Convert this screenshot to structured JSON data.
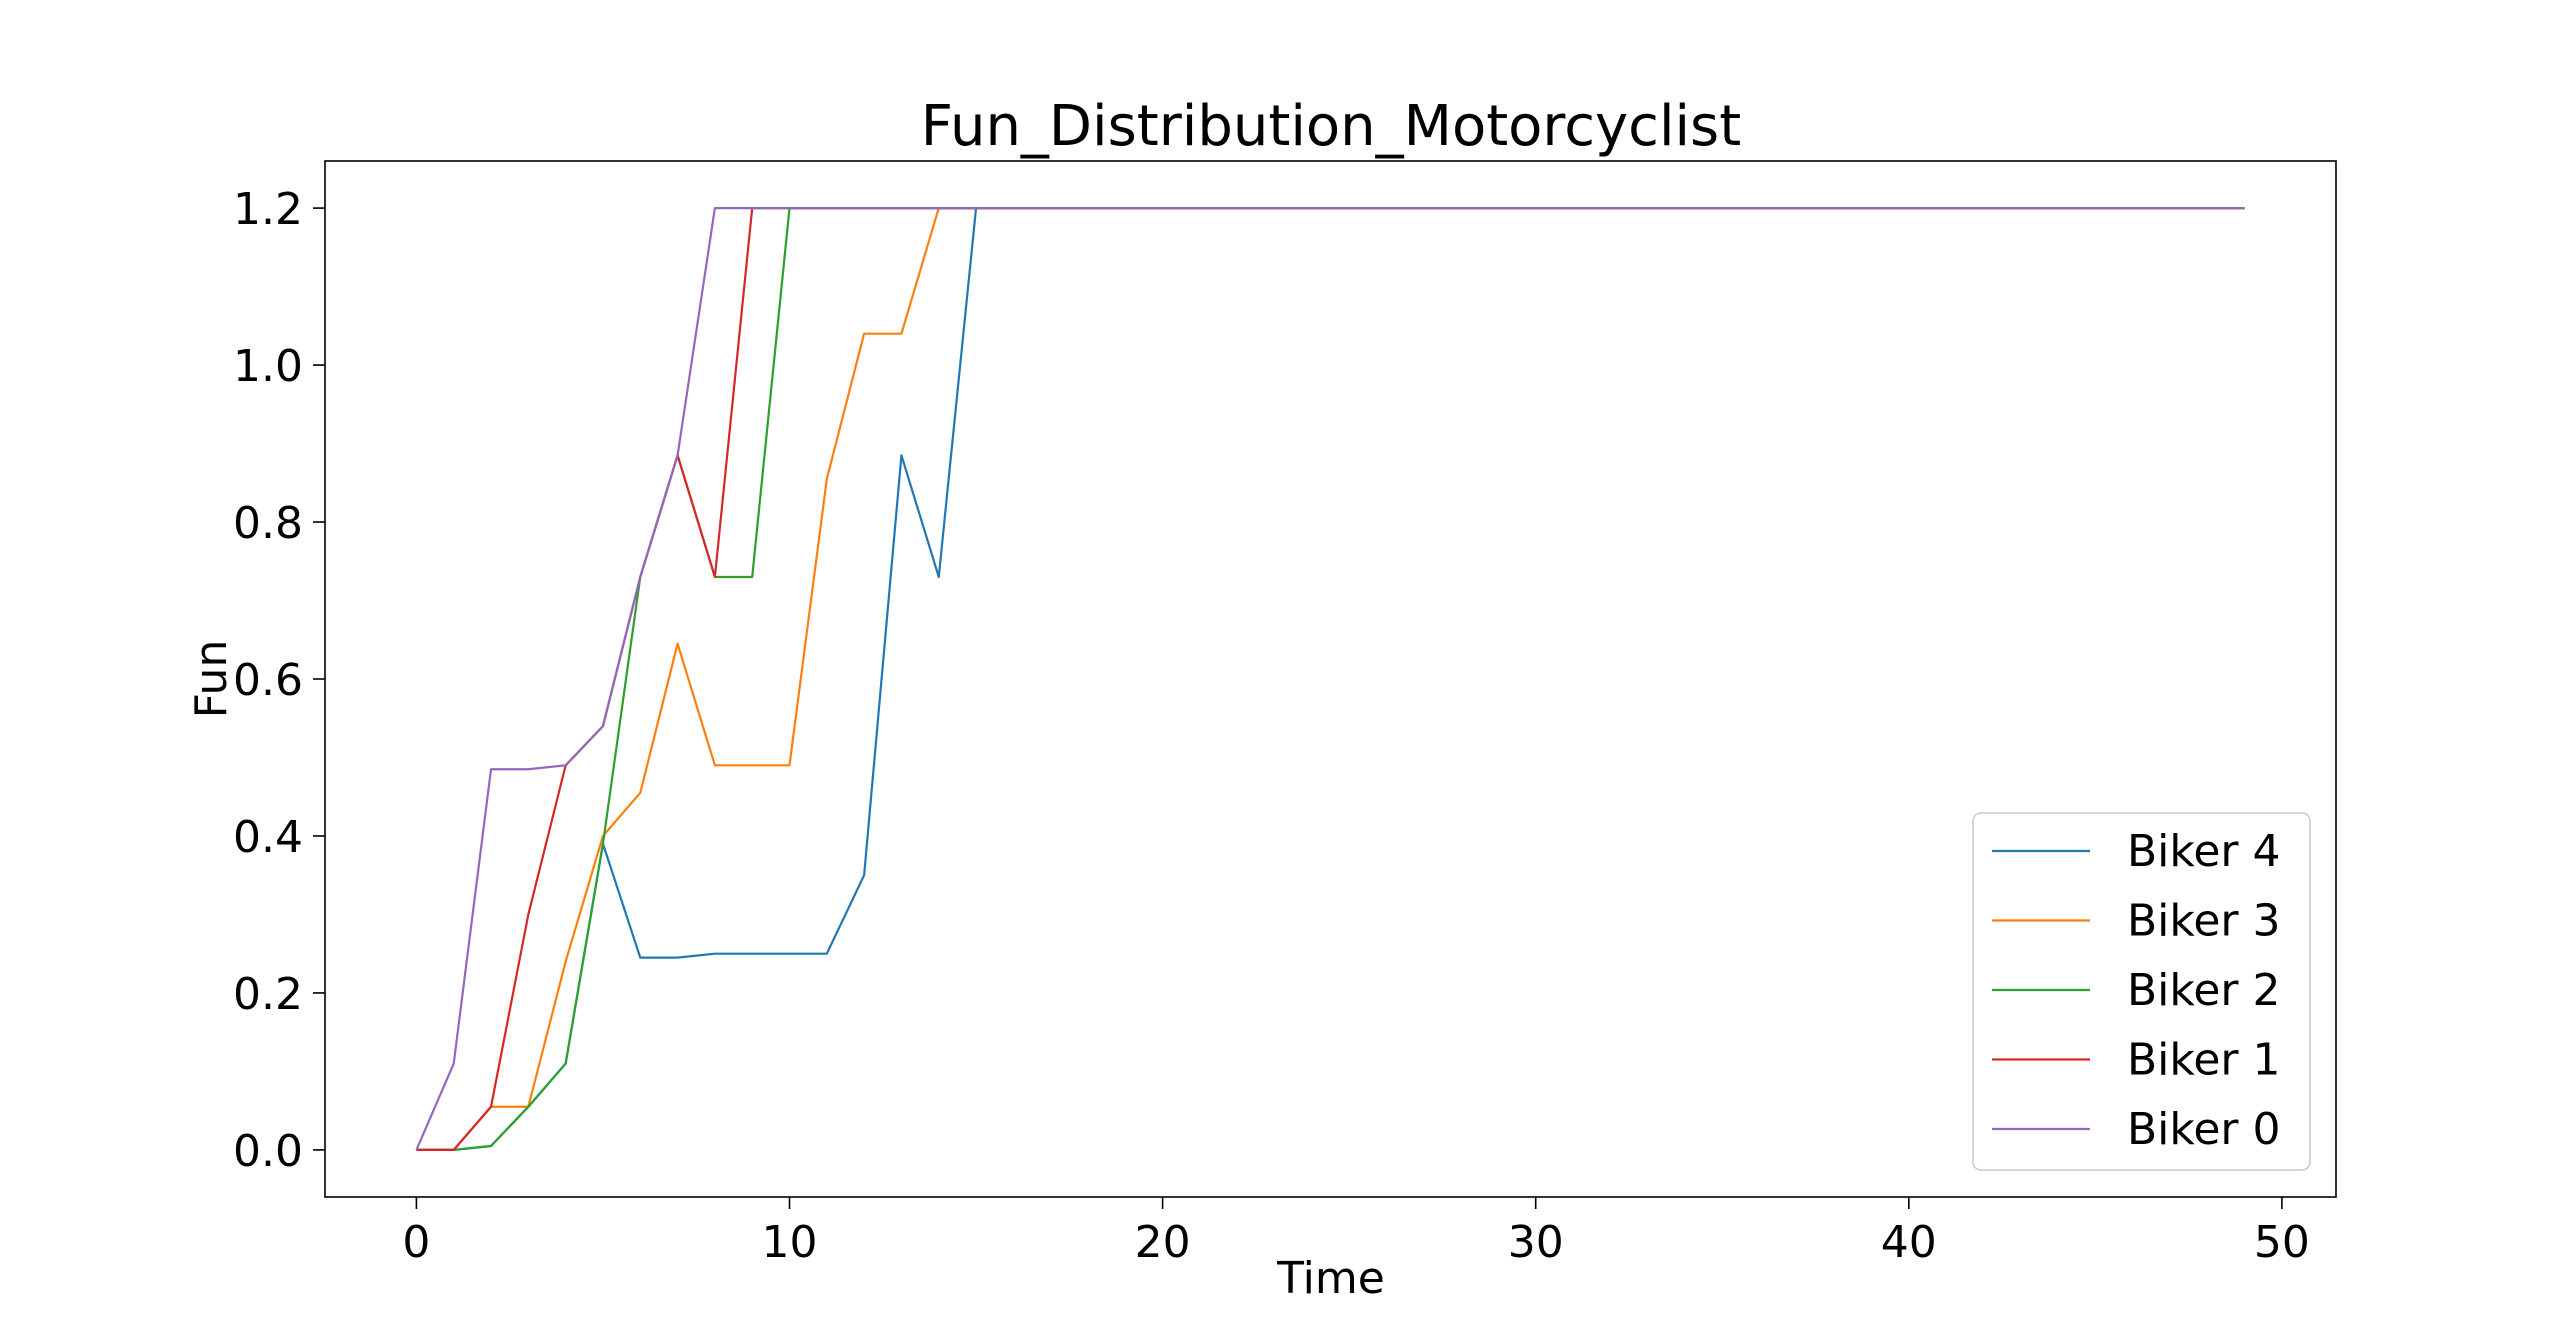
{
  "chart_data": {
    "type": "line",
    "title": "Fun_Distribution_Motorcyclist",
    "xlabel": "Time",
    "ylabel": "Fun",
    "xlim": [
      -2.45,
      51.45
    ],
    "ylim": [
      -0.06,
      1.26
    ],
    "xticks": [
      0,
      10,
      20,
      30,
      40,
      50
    ],
    "yticks": [
      0.0,
      0.2,
      0.4,
      0.6,
      0.8,
      1.0,
      1.2
    ],
    "ytick_labels": [
      "0.0",
      "0.2",
      "0.4",
      "0.6",
      "0.8",
      "1.0",
      "1.2"
    ],
    "grid": false,
    "legend_position": "lower-right",
    "series": [
      {
        "name": "Biker 4",
        "color": "#1f77b4",
        "x": [
          0,
          1,
          2,
          3,
          4,
          5,
          6,
          7,
          8,
          9,
          10,
          11,
          12,
          13,
          14,
          15,
          49
        ],
        "y": [
          0.0,
          0.0,
          0.005,
          0.055,
          0.11,
          0.39,
          0.245,
          0.245,
          0.25,
          0.25,
          0.25,
          0.25,
          0.35,
          0.885,
          0.73,
          1.2,
          1.2
        ]
      },
      {
        "name": "Biker 3",
        "color": "#ff7f0e",
        "x": [
          0,
          1,
          2,
          3,
          4,
          5,
          6,
          7,
          8,
          9,
          10,
          11,
          12,
          13,
          14,
          49
        ],
        "y": [
          0.0,
          0.0,
          0.055,
          0.055,
          0.24,
          0.4,
          0.455,
          0.645,
          0.49,
          0.49,
          0.49,
          0.855,
          1.04,
          1.04,
          1.2,
          1.2
        ]
      },
      {
        "name": "Biker 2",
        "color": "#2ca02c",
        "x": [
          0,
          1,
          2,
          3,
          4,
          5,
          6,
          7,
          8,
          9,
          10,
          49
        ],
        "y": [
          0.0,
          0.0,
          0.005,
          0.055,
          0.11,
          0.39,
          0.73,
          0.885,
          0.73,
          0.73,
          1.2,
          1.2
        ]
      },
      {
        "name": "Biker 1",
        "color": "#d62728",
        "x": [
          0,
          1,
          2,
          3,
          4,
          5,
          6,
          7,
          8,
          9,
          49
        ],
        "y": [
          0.0,
          0.0,
          0.055,
          0.3,
          0.49,
          0.54,
          0.73,
          0.885,
          0.73,
          1.2,
          1.2
        ]
      },
      {
        "name": "Biker 0",
        "color": "#9467bd",
        "x": [
          0,
          1,
          2,
          3,
          4,
          5,
          6,
          7,
          8,
          49
        ],
        "y": [
          0.0,
          0.11,
          0.485,
          0.485,
          0.49,
          0.54,
          0.73,
          0.885,
          1.2,
          1.2
        ]
      }
    ]
  }
}
